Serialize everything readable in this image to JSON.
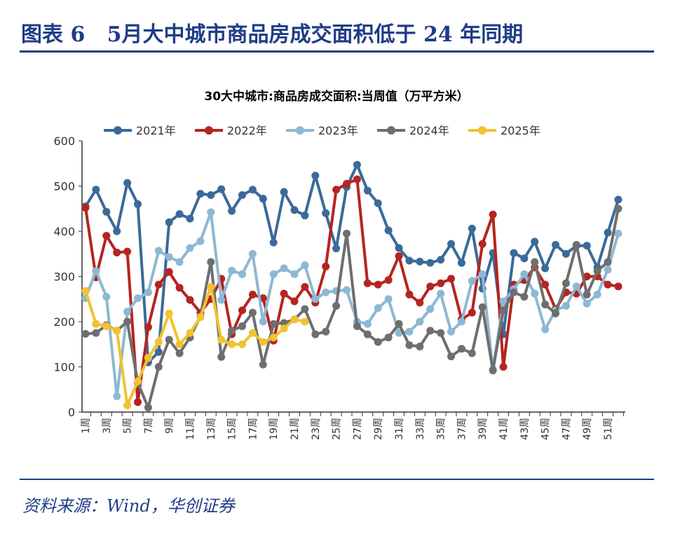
{
  "header": {
    "title": "图表 6   5月大中城市商品房成交面积低于 24 年同期"
  },
  "source": "资料来源：Wind，华创证券",
  "chart_data": {
    "type": "line",
    "title": "30大中城市:商品房成交面积:当周值（万平方米）",
    "xlabel": "",
    "ylabel": "",
    "ylim": [
      0,
      600
    ],
    "yticks": [
      0,
      100,
      200,
      300,
      400,
      500,
      600
    ],
    "x_suffix": "周",
    "x_count": 52,
    "x_tick_labels_every": 2,
    "legend_position": "top",
    "grid": false,
    "series": [
      {
        "name": "2021年",
        "color": "#3A6A99",
        "values": [
          455,
          492,
          443,
          400,
          507,
          460,
          110,
          133,
          420,
          438,
          428,
          483,
          480,
          493,
          445,
          480,
          492,
          472,
          375,
          487,
          447,
          435,
          523,
          440,
          362,
          498,
          547,
          490,
          462,
          402,
          363,
          335,
          333,
          330,
          337,
          372,
          330,
          406,
          273,
          352,
          172,
          352,
          340,
          377,
          318,
          370,
          350,
          368,
          368,
          320,
          397,
          470
        ]
      },
      {
        "name": "2022年",
        "color": "#B52420",
        "values": [
          452,
          298,
          390,
          353,
          355,
          22,
          188,
          282,
          310,
          275,
          248,
          220,
          250,
          295,
          172,
          225,
          260,
          252,
          158,
          262,
          245,
          277,
          242,
          322,
          492,
          505,
          515,
          285,
          282,
          292,
          345,
          260,
          242,
          278,
          285,
          295,
          205,
          220,
          372,
          437,
          100,
          282,
          292,
          320,
          282,
          228,
          265,
          262,
          300,
          300,
          282,
          278
        ]
      },
      {
        "name": "2023年",
        "color": "#8DB8D4",
        "values": [
          252,
          312,
          255,
          35,
          222,
          252,
          265,
          357,
          343,
          332,
          363,
          378,
          442,
          248,
          313,
          305,
          350,
          200,
          305,
          318,
          305,
          325,
          250,
          265,
          268,
          270,
          200,
          195,
          230,
          250,
          175,
          178,
          200,
          228,
          262,
          178,
          200,
          290,
          305,
          95,
          245,
          272,
          305,
          262,
          183,
          225,
          235,
          278,
          240,
          260,
          315,
          395
        ]
      },
      {
        "name": "2024年",
        "color": "#6E6E6E",
        "values": [
          173,
          175,
          192,
          180,
          200,
          65,
          10,
          100,
          160,
          130,
          165,
          212,
          332,
          122,
          180,
          190,
          220,
          105,
          195,
          197,
          205,
          228,
          172,
          178,
          235,
          395,
          190,
          172,
          155,
          165,
          195,
          148,
          145,
          180,
          175,
          123,
          140,
          130,
          232,
          92,
          225,
          265,
          255,
          332,
          238,
          218,
          285,
          370,
          260,
          312,
          332,
          450
        ]
      },
      {
        "name": "2025年",
        "color": "#F2C230",
        "values": [
          268,
          195,
          190,
          180,
          15,
          68,
          120,
          155,
          218,
          150,
          175,
          210,
          277,
          160,
          150,
          150,
          175,
          155,
          165,
          185,
          205,
          200
        ]
      }
    ]
  }
}
